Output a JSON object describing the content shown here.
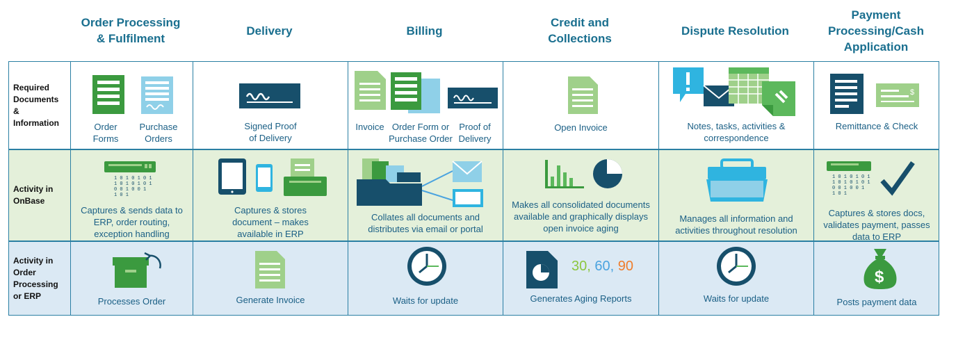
{
  "columns": [
    "Order Processing\n& Fulfilment",
    "Delivery",
    "Billing",
    "Credit and\nCollections",
    "Dispute Resolution",
    "Payment\nProcessing/Cash\nApplication"
  ],
  "rows": {
    "r1": "Required\nDocuments\n&\nInformation",
    "r2": "Activity in\nOnBase",
    "r3": "Activity in\nOrder\nProcessing\nor ERP"
  },
  "docs": {
    "order_forms": "Order\nForms",
    "purchase_orders": "Purchase\nOrders",
    "signed_pod": "Signed Proof\nof Delivery",
    "invoice": "Invoice",
    "order_form_po": "Order Form or\nPurchase Order",
    "proof_delivery": "Proof of\nDelivery",
    "open_invoice": "Open Invoice",
    "notes": "Notes, tasks, activities &\ncorrespondence",
    "remittance": "Remittance & Check"
  },
  "onbase": {
    "c1": "Captures & sends data to\nERP, order routing,\nexception handling",
    "c2": "Captures & stores\ndocument – makes\navailable in ERP",
    "c3": "Collates all documents and\ndistributes via email or portal",
    "c4": "Makes all consolidated documents\navailable and graphically displays\nopen invoice aging",
    "c5": "Manages all information and\nactivities throughout resolution",
    "c6": "Captures & stores docs,\nvalidates payment, passes\ndata to ERP"
  },
  "erp": {
    "c1": "Processes Order",
    "c2": "Generate Invoice",
    "c3": "Waits for update",
    "c4": "Generates Aging Reports",
    "c5": "Waits for update",
    "c6": "Posts payment data"
  },
  "aging": {
    "n1": "30",
    "sep1": ", ",
    "n2": "60",
    "sep2": ", ",
    "n3": "90"
  },
  "binary": "1 0 1 0 1 0 1\n1 0 1 0 1 0 1\n0 0 1   0 0 1\n  1 0     1",
  "dollar": "$",
  "colors": {
    "teal": "#1a6f8f",
    "navy": "#174f6b",
    "green": "#5cb85c",
    "lightgreen": "#9fd08a",
    "lightblue": "#8fd0e8",
    "border": "#2a7fa3",
    "orange": "#ef7d2b",
    "blue": "#4aa3df",
    "num_green": "#8cc63f"
  }
}
